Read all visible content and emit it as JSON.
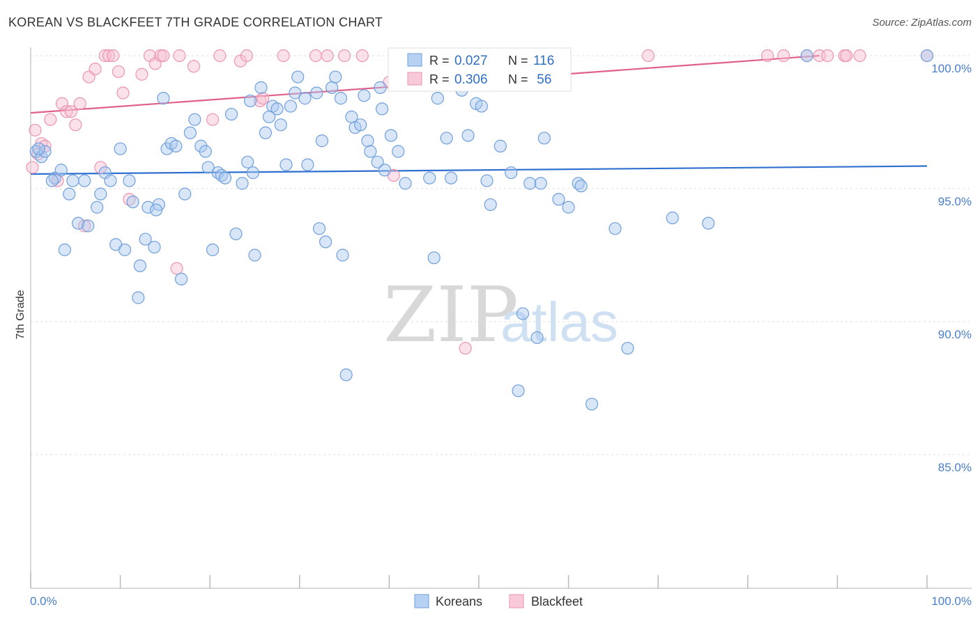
{
  "header": {
    "title": "KOREAN VS BLACKFEET 7TH GRADE CORRELATION CHART",
    "source": "Source: ZipAtlas.com"
  },
  "watermark": {
    "zip": "ZIP",
    "atlas": "atlas"
  },
  "colors": {
    "koreans_fill": "#a9c8f0",
    "koreans_stroke": "#6f9fdc",
    "koreans_line": "#2f6fcf",
    "blackfeet_fill": "#f6bfd0",
    "blackfeet_stroke": "#ec93b0",
    "blackfeet_line": "#e0608a",
    "tick_text": "#4a7fc8",
    "grid": "#dddddd"
  },
  "legend_top": {
    "rows": [
      {
        "r_label": "R = ",
        "r_value": "0.027",
        "n_label": "N = ",
        "n_value": "116"
      },
      {
        "r_label": "R = ",
        "r_value": "0.306",
        "n_label": "N = ",
        "n_value": " 56"
      }
    ]
  },
  "legend_bottom": {
    "items": [
      "Koreans",
      "Blackfeet"
    ]
  },
  "chart_data": {
    "type": "scatter",
    "title": "KOREAN VS BLACKFEET 7TH GRADE CORRELATION CHART",
    "xlabel": "",
    "ylabel": "7th Grade",
    "xlim": [
      0,
      100
    ],
    "ylim": [
      80.0,
      100.8
    ],
    "x_tick_labels": [
      "0.0%",
      "100.0%"
    ],
    "y_ticks": [
      100,
      95,
      90,
      85
    ],
    "y_tick_labels": [
      "100.0%",
      "95.0%",
      "90.0%",
      "85.0%"
    ],
    "grid": true,
    "legend_position": "top-center",
    "series": [
      {
        "name": "Koreans",
        "r": 0.027,
        "n": 116,
        "trend": [
          [
            0,
            95.55
          ],
          [
            100,
            95.85
          ]
        ],
        "points": [
          [
            0.6,
            96.4
          ],
          [
            1.2,
            96.2
          ],
          [
            1.6,
            96.4
          ],
          [
            2.7,
            95.4
          ],
          [
            3.4,
            95.7
          ],
          [
            2.4,
            95.3
          ],
          [
            3.8,
            92.7
          ],
          [
            4.3,
            94.8
          ],
          [
            4.7,
            95.3
          ],
          [
            5.3,
            93.7
          ],
          [
            6.0,
            95.3
          ],
          [
            6.4,
            93.6
          ],
          [
            7.4,
            94.3
          ],
          [
            7.8,
            94.8
          ],
          [
            8.3,
            95.6
          ],
          [
            8.9,
            95.3
          ],
          [
            9.5,
            92.9
          ],
          [
            10.0,
            96.5
          ],
          [
            10.5,
            92.7
          ],
          [
            11.0,
            95.3
          ],
          [
            11.4,
            94.5
          ],
          [
            12.0,
            90.9
          ],
          [
            12.2,
            92.1
          ],
          [
            12.8,
            93.1
          ],
          [
            13.1,
            94.3
          ],
          [
            13.8,
            92.8
          ],
          [
            14.3,
            94.4
          ],
          [
            14.8,
            98.4
          ],
          [
            15.2,
            96.5
          ],
          [
            15.7,
            96.7
          ],
          [
            16.2,
            96.6
          ],
          [
            16.8,
            91.6
          ],
          [
            17.2,
            94.8
          ],
          [
            17.8,
            97.1
          ],
          [
            18.3,
            97.6
          ],
          [
            19.0,
            96.6
          ],
          [
            19.5,
            96.4
          ],
          [
            19.8,
            95.8
          ],
          [
            20.3,
            92.7
          ],
          [
            20.9,
            95.6
          ],
          [
            21.3,
            95.5
          ],
          [
            21.7,
            95.4
          ],
          [
            22.4,
            97.8
          ],
          [
            22.9,
            93.3
          ],
          [
            23.6,
            95.2
          ],
          [
            24.2,
            96.0
          ],
          [
            24.5,
            98.3
          ],
          [
            25.0,
            92.5
          ],
          [
            25.7,
            98.8
          ],
          [
            26.2,
            97.1
          ],
          [
            26.6,
            97.7
          ],
          [
            27.0,
            98.1
          ],
          [
            27.5,
            98.0
          ],
          [
            27.9,
            97.4
          ],
          [
            28.5,
            95.9
          ],
          [
            29.0,
            98.1
          ],
          [
            29.5,
            98.6
          ],
          [
            29.8,
            99.2
          ],
          [
            30.6,
            98.4
          ],
          [
            30.9,
            95.9
          ],
          [
            31.9,
            98.6
          ],
          [
            32.2,
            93.5
          ],
          [
            32.5,
            96.8
          ],
          [
            32.9,
            93.0
          ],
          [
            33.6,
            98.8
          ],
          [
            34.0,
            99.2
          ],
          [
            34.6,
            98.4
          ],
          [
            34.8,
            92.5
          ],
          [
            35.2,
            88.0
          ],
          [
            35.8,
            97.7
          ],
          [
            36.2,
            97.3
          ],
          [
            36.8,
            97.4
          ],
          [
            37.2,
            98.5
          ],
          [
            37.6,
            96.8
          ],
          [
            37.9,
            96.4
          ],
          [
            38.7,
            96.0
          ],
          [
            39.0,
            98.8
          ],
          [
            39.5,
            95.7
          ],
          [
            40.2,
            97.0
          ],
          [
            41.0,
            96.4
          ],
          [
            41.8,
            95.2
          ],
          [
            43.1,
            100.0
          ],
          [
            44.5,
            95.4
          ],
          [
            45.0,
            92.4
          ],
          [
            45.4,
            98.4
          ],
          [
            46.4,
            96.9
          ],
          [
            46.9,
            95.4
          ],
          [
            48.1,
            98.7
          ],
          [
            48.8,
            97.0
          ],
          [
            49.7,
            98.2
          ],
          [
            50.3,
            98.1
          ],
          [
            50.9,
            95.3
          ],
          [
            51.3,
            94.4
          ],
          [
            52.4,
            96.6
          ],
          [
            53.6,
            95.6
          ],
          [
            54.4,
            87.4
          ],
          [
            54.9,
            90.3
          ],
          [
            55.7,
            95.2
          ],
          [
            56.5,
            89.4
          ],
          [
            56.9,
            95.2
          ],
          [
            57.3,
            96.9
          ],
          [
            58.9,
            94.6
          ],
          [
            60.0,
            94.3
          ],
          [
            61.1,
            95.2
          ],
          [
            62.6,
            86.9
          ],
          [
            65.2,
            93.5
          ],
          [
            66.6,
            89.0
          ],
          [
            71.6,
            93.9
          ],
          [
            75.6,
            93.7
          ],
          [
            86.6,
            100.0
          ],
          [
            100.0,
            100.0
          ],
          [
            0.9,
            96.5
          ],
          [
            14.0,
            94.2
          ],
          [
            24.8,
            95.6
          ],
          [
            39.2,
            98.0
          ],
          [
            61.4,
            95.1
          ]
        ]
      },
      {
        "name": "Blackfeet",
        "r": 0.306,
        "n": 56,
        "trend": [
          [
            0,
            97.85
          ],
          [
            88,
            100.0
          ]
        ],
        "points": [
          [
            0.2,
            95.8
          ],
          [
            0.5,
            97.2
          ],
          [
            0.8,
            96.3
          ],
          [
            1.2,
            96.7
          ],
          [
            1.6,
            96.6
          ],
          [
            2.2,
            97.6
          ],
          [
            3.0,
            95.3
          ],
          [
            3.5,
            98.2
          ],
          [
            4.0,
            97.9
          ],
          [
            4.5,
            97.9
          ],
          [
            5.0,
            97.4
          ],
          [
            5.5,
            98.2
          ],
          [
            6.0,
            93.6
          ],
          [
            6.5,
            99.2
          ],
          [
            7.2,
            99.5
          ],
          [
            7.8,
            95.8
          ],
          [
            8.3,
            100.0
          ],
          [
            8.7,
            100.0
          ],
          [
            9.2,
            100.0
          ],
          [
            9.8,
            99.4
          ],
          [
            10.3,
            98.6
          ],
          [
            11.0,
            94.6
          ],
          [
            12.4,
            99.3
          ],
          [
            13.3,
            100.0
          ],
          [
            13.9,
            99.7
          ],
          [
            14.5,
            100.0
          ],
          [
            14.8,
            100.0
          ],
          [
            16.3,
            92.0
          ],
          [
            16.6,
            100.0
          ],
          [
            18.2,
            99.6
          ],
          [
            20.3,
            97.6
          ],
          [
            21.1,
            100.0
          ],
          [
            23.4,
            99.8
          ],
          [
            24.1,
            100.0
          ],
          [
            25.6,
            98.3
          ],
          [
            25.9,
            98.4
          ],
          [
            28.2,
            100.0
          ],
          [
            31.8,
            100.0
          ],
          [
            33.1,
            100.0
          ],
          [
            35.0,
            100.0
          ],
          [
            37.0,
            100.0
          ],
          [
            40.5,
            95.5
          ],
          [
            40.0,
            99.0
          ],
          [
            47.5,
            100.0
          ],
          [
            48.5,
            89.0
          ],
          [
            54.0,
            100.0
          ],
          [
            68.9,
            100.0
          ],
          [
            82.2,
            100.0
          ],
          [
            84.0,
            100.0
          ],
          [
            86.6,
            100.0
          ],
          [
            88.0,
            100.0
          ],
          [
            88.9,
            100.0
          ],
          [
            90.8,
            100.0
          ],
          [
            91.0,
            100.0
          ],
          [
            92.5,
            100.0
          ],
          [
            100.0,
            100.0
          ]
        ]
      }
    ]
  }
}
